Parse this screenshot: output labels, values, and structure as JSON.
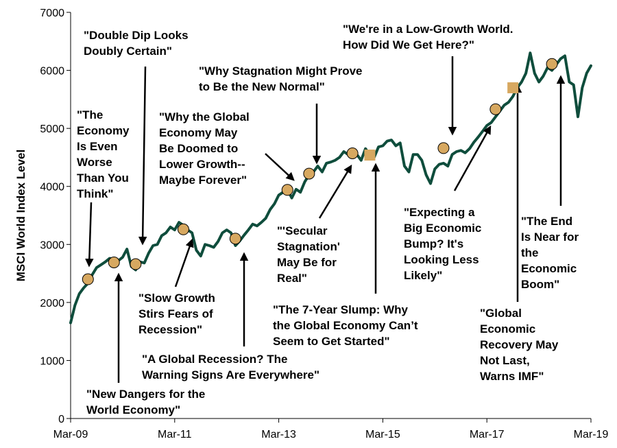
{
  "chart_data": {
    "type": "line",
    "title": "",
    "ylabel": "MSCI World Index Level",
    "xlabel": "",
    "ylim": [
      0,
      7000
    ],
    "yticks": [
      0,
      1000,
      2000,
      3000,
      4000,
      5000,
      6000,
      7000
    ],
    "xlim": [
      "2009-03",
      "2019-03"
    ],
    "xticks": [
      {
        "date": "2009-03",
        "label": "Mar-09"
      },
      {
        "date": "2011-03",
        "label": "Mar-11"
      },
      {
        "date": "2013-03",
        "label": "Mar-13"
      },
      {
        "date": "2015-03",
        "label": "Mar-15"
      },
      {
        "date": "2017-03",
        "label": "Mar-17"
      },
      {
        "date": "2019-03",
        "label": "Mar-19"
      }
    ],
    "grid": false,
    "series": [
      {
        "color": "#0f4d3c",
        "points": [
          [
            "2009-03",
            1650
          ],
          [
            "2009-04",
            1950
          ],
          [
            "2009-05",
            2150
          ],
          [
            "2009-06",
            2250
          ],
          [
            "2009-07",
            2330
          ],
          [
            "2009-08",
            2480
          ],
          [
            "2009-09",
            2600
          ],
          [
            "2009-10",
            2650
          ],
          [
            "2009-11",
            2700
          ],
          [
            "2009-12",
            2760
          ],
          [
            "2010-01",
            2750
          ],
          [
            "2010-02",
            2720
          ],
          [
            "2010-03",
            2780
          ],
          [
            "2010-04",
            2920
          ],
          [
            "2010-05",
            2620
          ],
          [
            "2010-06",
            2560
          ],
          [
            "2010-07",
            2700
          ],
          [
            "2010-08",
            2680
          ],
          [
            "2010-09",
            2850
          ],
          [
            "2010-10",
            2980
          ],
          [
            "2010-11",
            3000
          ],
          [
            "2010-12",
            3150
          ],
          [
            "2011-01",
            3200
          ],
          [
            "2011-02",
            3300
          ],
          [
            "2011-03",
            3250
          ],
          [
            "2011-04",
            3380
          ],
          [
            "2011-05",
            3330
          ],
          [
            "2011-06",
            3250
          ],
          [
            "2011-07",
            3200
          ],
          [
            "2011-08",
            2900
          ],
          [
            "2011-09",
            2800
          ],
          [
            "2011-10",
            3000
          ],
          [
            "2011-11",
            2980
          ],
          [
            "2011-12",
            2950
          ],
          [
            "2012-01",
            3050
          ],
          [
            "2012-02",
            3200
          ],
          [
            "2012-03",
            3250
          ],
          [
            "2012-04",
            3200
          ],
          [
            "2012-05",
            2980
          ],
          [
            "2012-06",
            3060
          ],
          [
            "2012-07",
            3160
          ],
          [
            "2012-08",
            3250
          ],
          [
            "2012-09",
            3350
          ],
          [
            "2012-10",
            3320
          ],
          [
            "2012-11",
            3380
          ],
          [
            "2012-12",
            3450
          ],
          [
            "2013-01",
            3600
          ],
          [
            "2013-02",
            3700
          ],
          [
            "2013-03",
            3850
          ],
          [
            "2013-04",
            3900
          ],
          [
            "2013-05",
            3950
          ],
          [
            "2013-06",
            3800
          ],
          [
            "2013-07",
            3950
          ],
          [
            "2013-08",
            3900
          ],
          [
            "2013-09",
            4080
          ],
          [
            "2013-10",
            4200
          ],
          [
            "2013-11",
            4250
          ],
          [
            "2013-12",
            4350
          ],
          [
            "2014-01",
            4250
          ],
          [
            "2014-02",
            4400
          ],
          [
            "2014-03",
            4420
          ],
          [
            "2014-04",
            4450
          ],
          [
            "2014-05",
            4500
          ],
          [
            "2014-06",
            4600
          ],
          [
            "2014-07",
            4550
          ],
          [
            "2014-08",
            4620
          ],
          [
            "2014-09",
            4550
          ],
          [
            "2014-10",
            4450
          ],
          [
            "2014-11",
            4650
          ],
          [
            "2014-12",
            4550
          ],
          [
            "2015-01",
            4500
          ],
          [
            "2015-02",
            4680
          ],
          [
            "2015-03",
            4700
          ],
          [
            "2015-04",
            4780
          ],
          [
            "2015-05",
            4800
          ],
          [
            "2015-06",
            4700
          ],
          [
            "2015-07",
            4750
          ],
          [
            "2015-08",
            4350
          ],
          [
            "2015-09",
            4250
          ],
          [
            "2015-10",
            4550
          ],
          [
            "2015-11",
            4550
          ],
          [
            "2015-12",
            4450
          ],
          [
            "2016-01",
            4200
          ],
          [
            "2016-02",
            4050
          ],
          [
            "2016-03",
            4300
          ],
          [
            "2016-04",
            4380
          ],
          [
            "2016-05",
            4400
          ],
          [
            "2016-06",
            4350
          ],
          [
            "2016-07",
            4550
          ],
          [
            "2016-08",
            4600
          ],
          [
            "2016-09",
            4620
          ],
          [
            "2016-10",
            4580
          ],
          [
            "2016-11",
            4650
          ],
          [
            "2016-12",
            4760
          ],
          [
            "2017-01",
            4850
          ],
          [
            "2017-02",
            4950
          ],
          [
            "2017-03",
            5050
          ],
          [
            "2017-04",
            5100
          ],
          [
            "2017-05",
            5200
          ],
          [
            "2017-06",
            5300
          ],
          [
            "2017-07",
            5400
          ],
          [
            "2017-08",
            5450
          ],
          [
            "2017-09",
            5550
          ],
          [
            "2017-10",
            5700
          ],
          [
            "2017-11",
            5800
          ],
          [
            "2017-12",
            5950
          ],
          [
            "2018-01",
            6300
          ],
          [
            "2018-02",
            5950
          ],
          [
            "2018-03",
            5800
          ],
          [
            "2018-04",
            5900
          ],
          [
            "2018-05",
            6050
          ],
          [
            "2018-06",
            6000
          ],
          [
            "2018-07",
            6100
          ],
          [
            "2018-08",
            6200
          ],
          [
            "2018-09",
            6250
          ],
          [
            "2018-10",
            5800
          ],
          [
            "2018-11",
            5750
          ],
          [
            "2018-12",
            5200
          ],
          [
            "2019-01",
            5700
          ],
          [
            "2019-02",
            5950
          ],
          [
            "2019-03",
            6080
          ]
        ]
      }
    ],
    "markers": [
      {
        "date": "2009-07",
        "value": 2400,
        "shape": "circle",
        "color": "#d7a860"
      },
      {
        "date": "2010-01",
        "value": 2690,
        "shape": "circle",
        "color": "#d7a860"
      },
      {
        "date": "2010-06",
        "value": 2660,
        "shape": "circle",
        "color": "#d7a860"
      },
      {
        "date": "2011-05",
        "value": 3260,
        "shape": "circle",
        "color": "#d7a860"
      },
      {
        "date": "2012-05",
        "value": 3100,
        "shape": "circle",
        "color": "#d7a860"
      },
      {
        "date": "2013-05",
        "value": 3940,
        "shape": "circle",
        "color": "#d7a860"
      },
      {
        "date": "2013-10",
        "value": 4220,
        "shape": "circle",
        "color": "#d7a860"
      },
      {
        "date": "2014-08",
        "value": 4570,
        "shape": "circle",
        "color": "#d7a860"
      },
      {
        "date": "2014-12",
        "value": 4540,
        "shape": "square",
        "color": "#d7a860"
      },
      {
        "date": "2016-05",
        "value": 4660,
        "shape": "circle",
        "color": "#d7a860"
      },
      {
        "date": "2017-05",
        "value": 5330,
        "shape": "circle",
        "color": "#d7a860"
      },
      {
        "date": "2017-09",
        "value": 5700,
        "shape": "square",
        "color": "#d7a860"
      },
      {
        "date": "2018-06",
        "value": 6110,
        "shape": "circle",
        "color": "#d7a860"
      }
    ],
    "annotations": [
      {
        "lines": [
          "\"The",
          "Economy",
          "Is Even",
          "Worse",
          "Than You",
          "Think\""
        ],
        "align": "start",
        "text_x": 112,
        "text_y": 173,
        "arrow": [
          [
            133,
            295
          ],
          [
            130,
            387
          ]
        ]
      },
      {
        "lines": [
          "\"Double Dip Looks",
          "Doubly Certain\""
        ],
        "align": "start",
        "text_x": 122,
        "text_y": 57,
        "arrow": [
          [
            212,
            97
          ],
          [
            208,
            355
          ]
        ]
      },
      {
        "lines": [
          "\"New Dangers for the",
          "World Economy\""
        ],
        "align": "start",
        "text_x": 126,
        "text_y": 580,
        "arrow": [
          [
            173,
            558
          ],
          [
            173,
            400
          ]
        ]
      },
      {
        "lines": [
          "\"Slow Growth",
          "Stirs Fears of",
          "Recession\""
        ],
        "align": "start",
        "text_x": 202,
        "text_y": 440,
        "arrow": [
          [
            256,
            418
          ],
          [
            280,
            350
          ]
        ]
      },
      {
        "lines": [
          "\"A Global Recession? The",
          "Warning Signs Are Everywhere\""
        ],
        "align": "start",
        "text_x": 207,
        "text_y": 529,
        "arrow": [
          [
            356,
            505
          ],
          [
            356,
            370
          ]
        ]
      },
      {
        "lines": [
          "\"Why the Global",
          "Economy May",
          "Be Doomed to",
          "Lower Growth--",
          "Maybe Forever\""
        ],
        "align": "start",
        "text_x": 232,
        "text_y": 176,
        "arrow": [
          [
            387,
            224
          ],
          [
            428,
            262
          ]
        ]
      },
      {
        "lines": [
          "\"Why Stagnation Might Prove",
          "to Be the New Normal\""
        ],
        "align": "start",
        "text_x": 290,
        "text_y": 109,
        "arrow": [
          [
            462,
            151
          ],
          [
            462,
            237
          ]
        ]
      },
      {
        "lines": [
          "\"'Secular",
          "Stagnation'",
          "May Be for",
          "Real\""
        ],
        "align": "start",
        "text_x": 404,
        "text_y": 342,
        "arrow": [
          [
            466,
            318
          ],
          [
            512,
            242
          ]
        ]
      },
      {
        "lines": [
          "\"The 7-Year Slump: Why",
          "the Global Economy Can’t",
          "Seem to Get Started\""
        ],
        "align": "start",
        "text_x": 398,
        "text_y": 457,
        "arrow": [
          [
            548,
            428
          ],
          [
            548,
            240
          ]
        ]
      },
      {
        "lines": [
          "\"We're in a Low-Growth World.",
          "How Did We Get Here?\""
        ],
        "align": "start",
        "text_x": 500,
        "text_y": 48,
        "arrow": [
          [
            660,
            82
          ],
          [
            660,
            195
          ]
        ]
      },
      {
        "lines": [
          "\"Expecting a",
          "Big Economic",
          "Bump? It's",
          "Looking Less",
          "Likely\""
        ],
        "align": "start",
        "text_x": 589,
        "text_y": 315,
        "arrow": [
          [
            663,
            278
          ],
          [
            715,
            185
          ]
        ]
      },
      {
        "lines": [
          "\"Global",
          "Economic",
          "Recovery May",
          "Not Last,",
          "Warns IMF\""
        ],
        "align": "start",
        "text_x": 700,
        "text_y": 462,
        "arrow": [
          [
            755,
            440
          ],
          [
            755,
            125
          ]
        ]
      },
      {
        "lines": [
          "\"The End",
          "Is Near for",
          "the",
          "Economic",
          "Boom\""
        ],
        "align": "start",
        "text_x": 760,
        "text_y": 328,
        "arrow": [
          [
            818,
            300
          ],
          [
            818,
            112
          ]
        ]
      }
    ]
  }
}
